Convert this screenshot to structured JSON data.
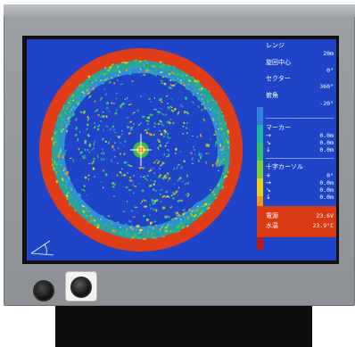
{
  "panel": {
    "range": {
      "label": "レンジ",
      "value": "20m"
    },
    "center_label": "旋回中心",
    "center_value": "0°",
    "sector": {
      "label": "セクター",
      "value": "360°"
    },
    "tilt": {
      "label": "俯角",
      "value": "-20°"
    },
    "marker": {
      "label": "マーカー",
      "rows": [
        {
          "sym": "→",
          "value": "0.0m"
        },
        {
          "sym": "↘",
          "value": "0.0m"
        },
        {
          "sym": "↓",
          "value": "0.0m"
        }
      ]
    },
    "cursor": {
      "label": "十字カーソル",
      "rows": [
        {
          "sym": "+",
          "value": "0°"
        },
        {
          "sym": "→",
          "value": "0.0m"
        },
        {
          "sym": "↘",
          "value": "0.0m"
        },
        {
          "sym": "↓",
          "value": "0.0m"
        }
      ]
    },
    "power": {
      "label": "電源",
      "value": "23.6V"
    },
    "water_temp": {
      "label": "水温",
      "value": "23.9°C"
    }
  },
  "colors": {
    "screen_bg": "#1f44c8",
    "echo_ring": "#e03c18",
    "scale": [
      "#1f44c8",
      "#2e7fd6",
      "#22b3a8",
      "#38c06a",
      "#7ed03a",
      "#e8d21e",
      "#f09a18",
      "#e03c18",
      "#c01a10"
    ]
  }
}
